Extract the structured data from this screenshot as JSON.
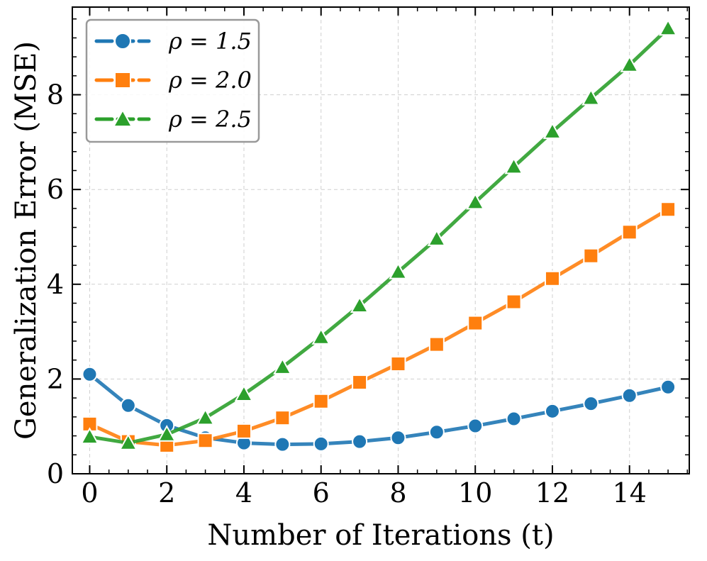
{
  "chart_data": {
    "type": "line",
    "title": "",
    "xlabel": "Number of Iterations (t)",
    "ylabel": "Generalization Error (MSE)",
    "xlim": [
      -0.45,
      15.55
    ],
    "ylim": [
      0,
      9.85
    ],
    "xticks": [
      0,
      2,
      4,
      6,
      8,
      10,
      12,
      14
    ],
    "yticks": [
      0,
      2,
      4,
      6,
      8
    ],
    "grid": true,
    "legend_position": "top-left",
    "x": [
      0,
      1,
      2,
      3,
      4,
      5,
      6,
      7,
      8,
      9,
      10,
      11,
      12,
      13,
      14,
      15
    ],
    "series": [
      {
        "name": "ρ = 1.5",
        "color": "#1f77b4",
        "marker": "circle",
        "values": [
          2.1,
          1.44,
          1.02,
          0.76,
          0.65,
          0.62,
          0.63,
          0.68,
          0.76,
          0.88,
          1.01,
          1.16,
          1.32,
          1.48,
          1.65,
          1.83
        ]
      },
      {
        "name": "ρ = 2.0",
        "color": "#ff7f0e",
        "marker": "square",
        "values": [
          1.05,
          0.68,
          0.6,
          0.7,
          0.9,
          1.18,
          1.53,
          1.93,
          2.32,
          2.73,
          3.18,
          3.63,
          4.12,
          4.6,
          5.1,
          5.58
        ]
      },
      {
        "name": "ρ = 2.5",
        "color": "#2ca02c",
        "marker": "triangle",
        "values": [
          0.78,
          0.65,
          0.83,
          1.18,
          1.68,
          2.25,
          2.88,
          3.55,
          4.26,
          4.96,
          5.73,
          6.48,
          7.22,
          7.93,
          8.63,
          9.4
        ]
      }
    ]
  }
}
